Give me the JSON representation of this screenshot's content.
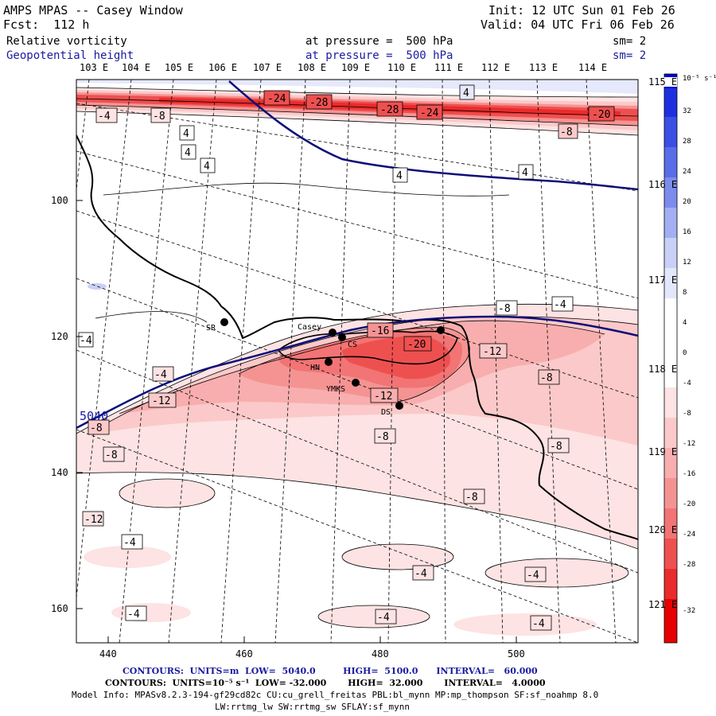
{
  "header": {
    "title": "AMPS MPAS -- Casey Window",
    "init": "Init: 12 UTC Sun 01 Feb 26",
    "fcst": "Fcst:  112 h",
    "valid": "Valid: 04 UTC Fri 06 Feb 26",
    "field1": "Relative vorticity",
    "field2": "Geopotential height",
    "press1": "at pressure =  500 hPa",
    "press2": "at pressure =  500 hPa",
    "sm1": "sm= 2",
    "sm2": "sm= 2"
  },
  "map": {
    "top_lon_labels": [
      "103 E",
      "104 E",
      "105 E",
      "106 E",
      "107 E",
      "108 E",
      "109 E",
      "110 E",
      "111 E",
      "112 E",
      "113 E",
      "114 E"
    ],
    "right_lon_labels": [
      "115 E",
      "116 E",
      "117 E",
      "118 E",
      "119 E",
      "120 E",
      "121 E"
    ],
    "y_ticks": [
      "100",
      "120",
      "140",
      "160"
    ],
    "x_ticks": [
      "440",
      "460",
      "480",
      "500"
    ],
    "stations": [
      "SR",
      "Casey",
      "CS",
      "HN",
      "YMKS",
      "DS"
    ],
    "vort_labels": [
      "-24",
      "-28",
      "-28",
      "-24",
      "-20",
      "-8",
      "-4",
      "-8",
      "4",
      "4",
      "4",
      "4",
      "4",
      "-8",
      "-4",
      "-16",
      "-20",
      "-12",
      "-4",
      "-4",
      "-12",
      "-12",
      "-8",
      "-8",
      "-8",
      "-8",
      "-8",
      "-8",
      "-12",
      "-4",
      "-4",
      "-4",
      "-4",
      "-4",
      "-4",
      "4"
    ],
    "height_label": "5040"
  },
  "colorbar": {
    "units": "10⁻⁵ s⁻¹",
    "levels": [
      "32",
      "28",
      "24",
      "20",
      "16",
      "12",
      "8",
      "4",
      "0",
      "-4",
      "-8",
      "-12",
      "-16",
      "-20",
      "-24",
      "-28",
      "-32"
    ],
    "colors": [
      "#0000d8",
      "#1e2fe0",
      "#3c4fe4",
      "#5a6de8",
      "#7c8cec",
      "#a3aff2",
      "#c9d0f8",
      "#ffffff",
      "#ffffff",
      "#fde3e3",
      "#fbc9c9",
      "#f8aeae",
      "#f59393",
      "#f27474",
      "#ee5050",
      "#ea2b2b",
      "#e60000"
    ]
  },
  "footer": {
    "contours1": "CONTOURS:  UNITS=m  LOW=  5040.0         HIGH=  5100.0      INTERVAL=   60.000",
    "contours2": "CONTOURS:  UNITS=10⁻⁵ s⁻¹  LOW= -32.000       HIGH=  32.000       INTERVAL=   4.0000",
    "model_info": "Model Info: MPASv8.2.3-194-gf29cd82c CU:cu_grell_freitas PBL:bl_mynn MP:mp_thompson SF:sf_noahmp 8.0",
    "model_info2": "LW:rrtmg_lw SW:rrtmg_sw SFLAY:sf_mynn"
  }
}
